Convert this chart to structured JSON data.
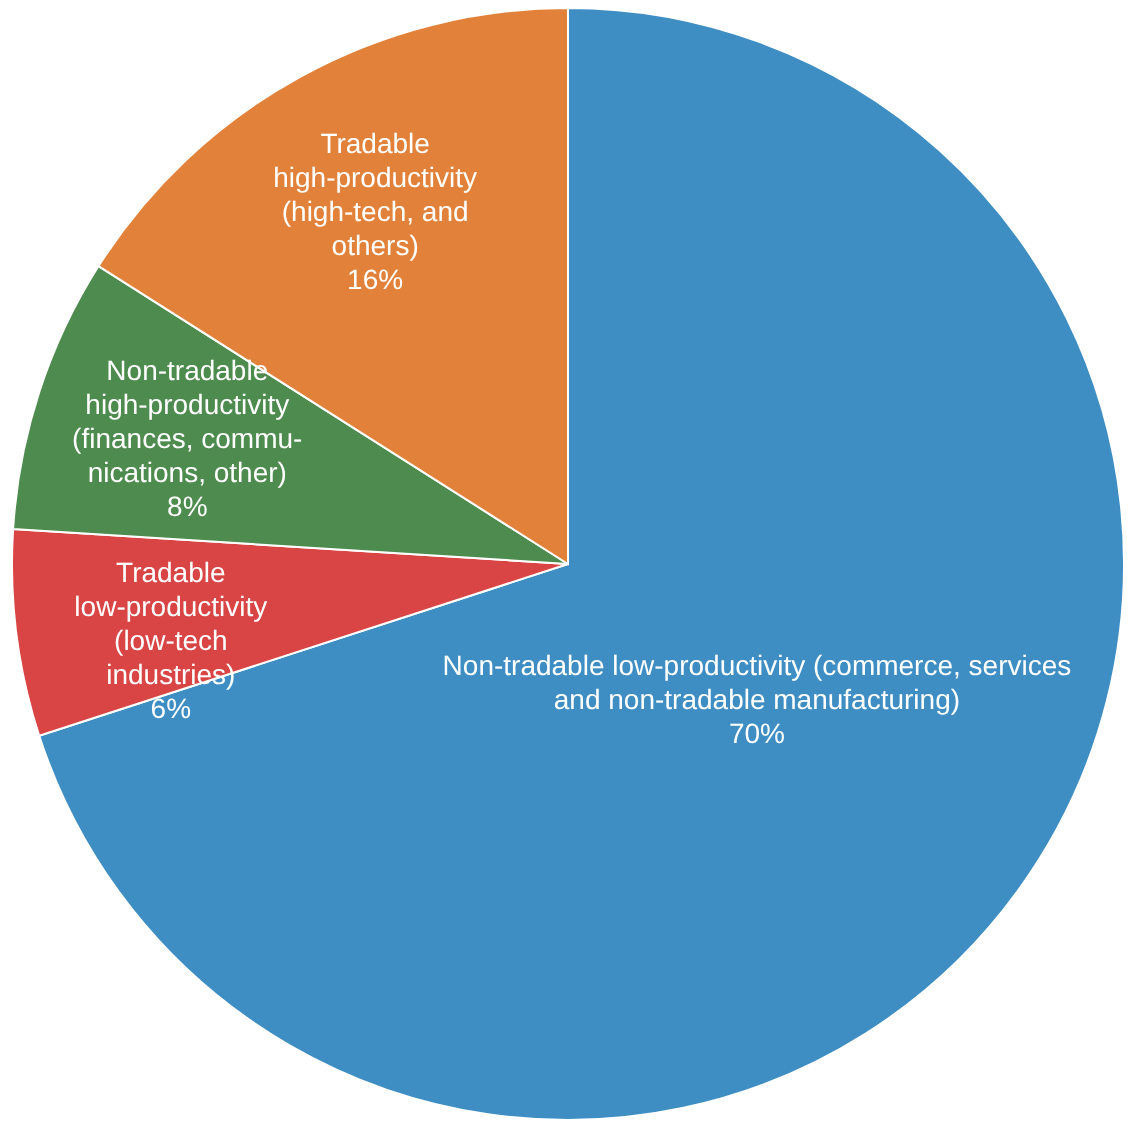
{
  "chart_data": {
    "type": "pie",
    "categories": [
      "Non-tradable low-productivity (commerce, services\nand non-tradable manufacturing)",
      "Tradable\nlow-productivity\n(low-tech\nindustries)",
      "Non-tradable\nhigh-productivity\n(finances, commu-\nnications, other)",
      "Tradable\nhigh-productivity\n(high-tech, and\nothers)"
    ],
    "values": [
      70,
      6,
      8,
      16
    ],
    "value_labels": [
      "70%",
      "6%",
      "8%",
      "16%"
    ],
    "colors": [
      "#3e8ec4",
      "#d94545",
      "#4e8b4e",
      "#e2823a"
    ]
  }
}
